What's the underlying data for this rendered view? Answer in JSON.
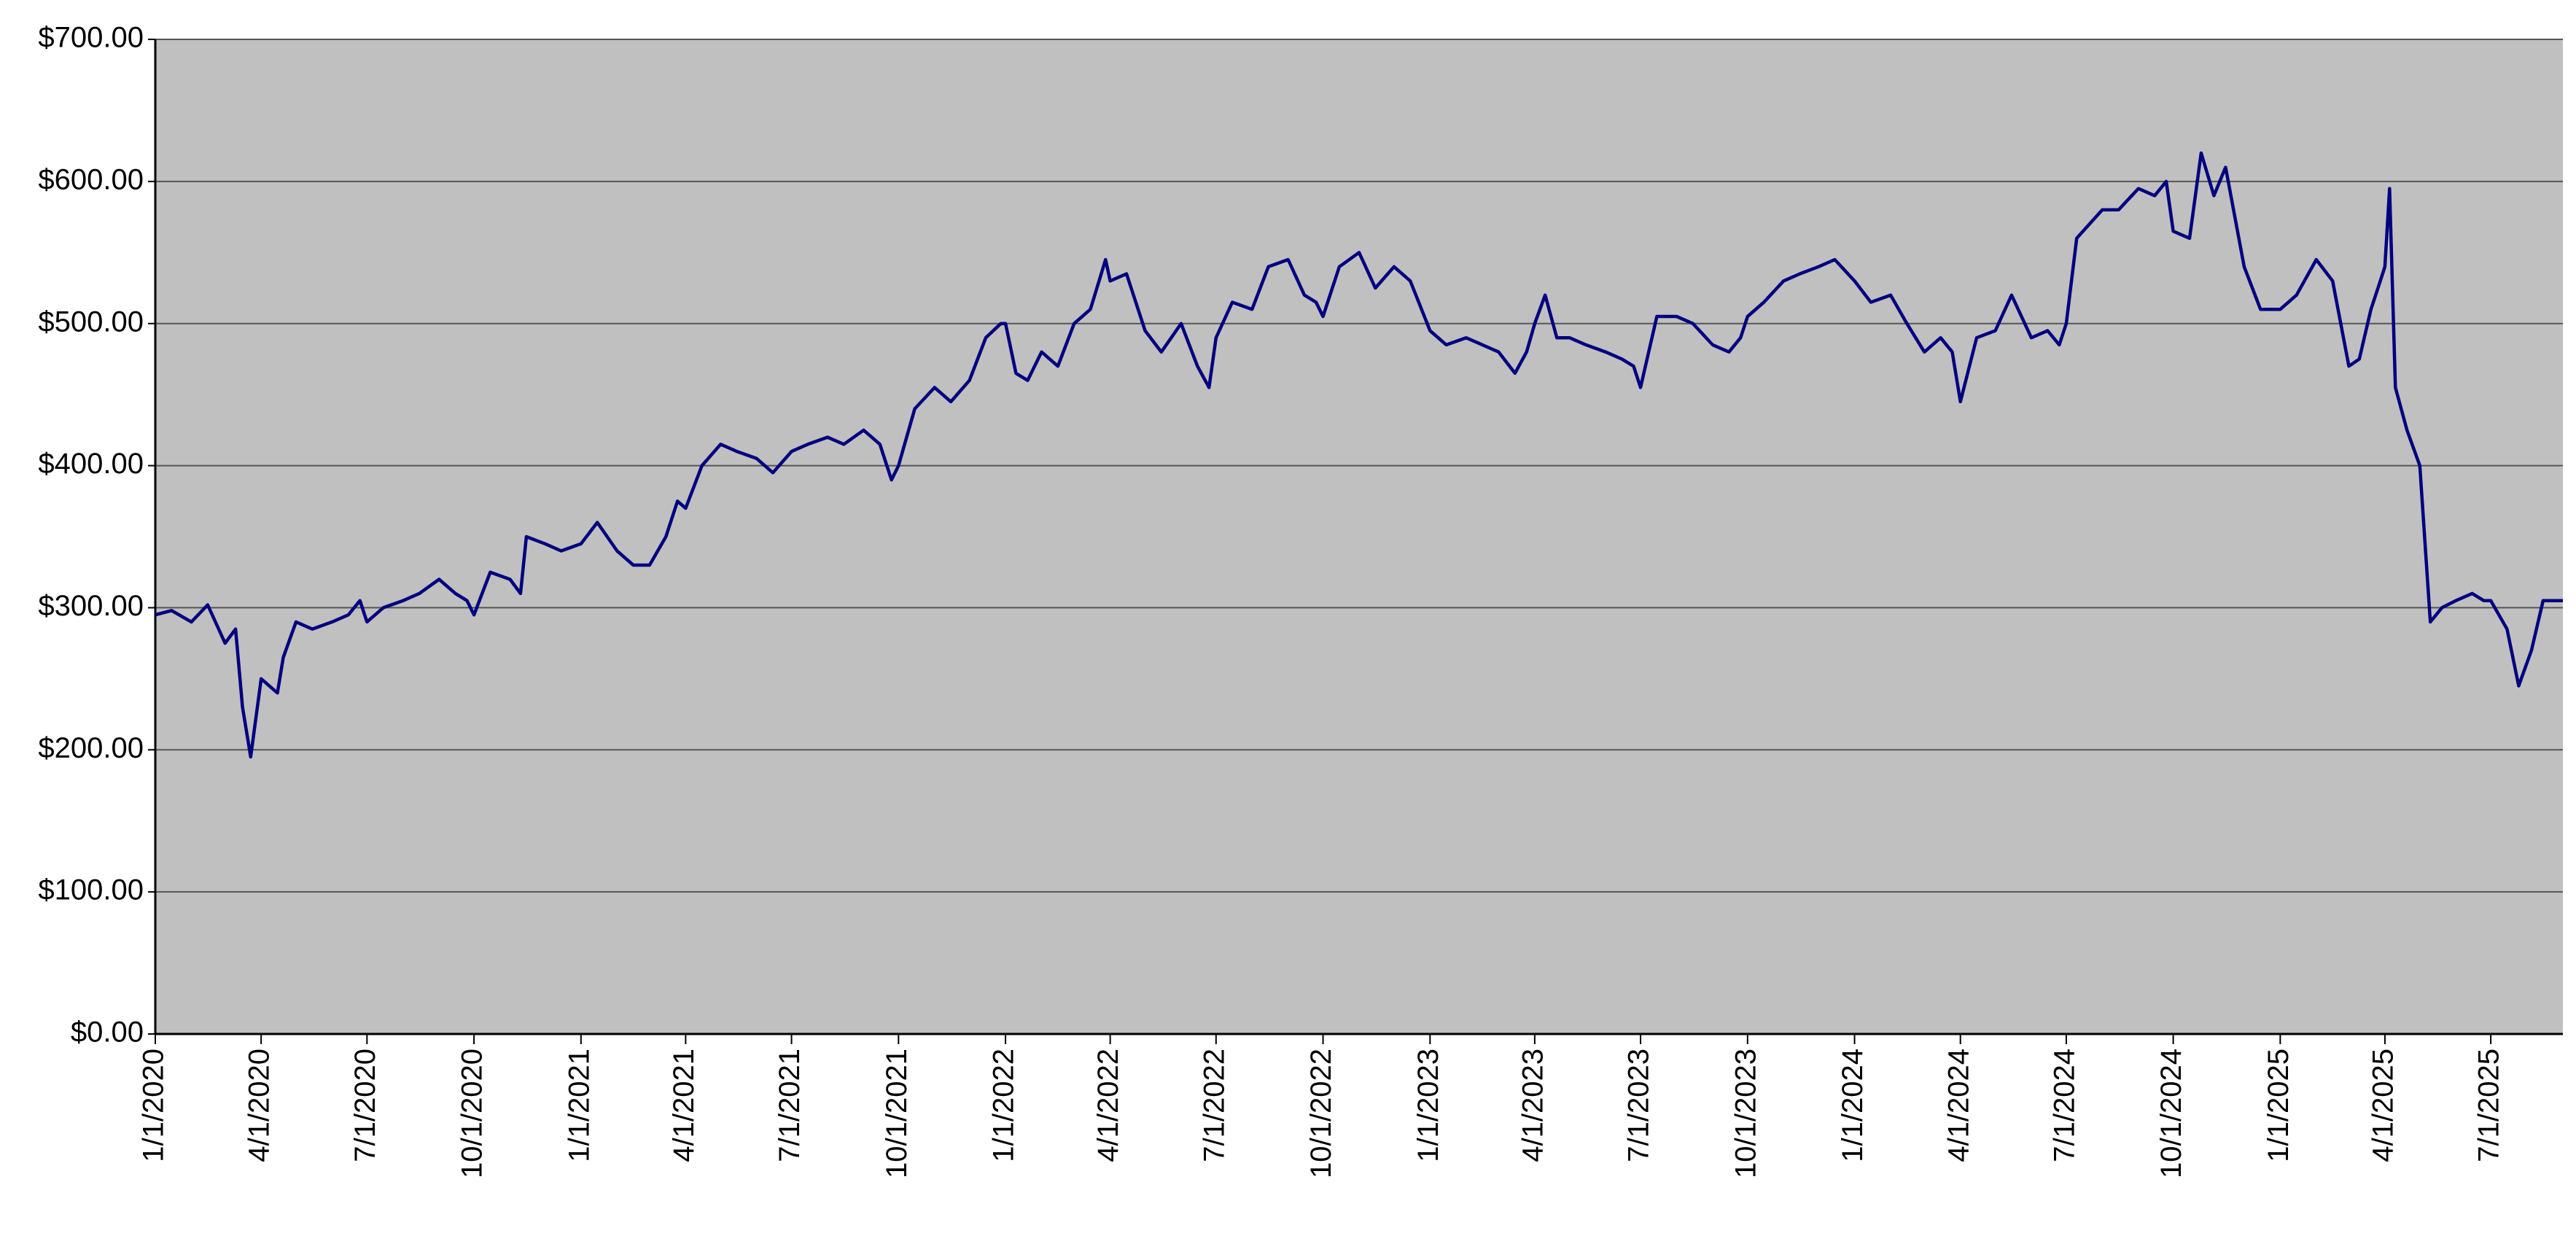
{
  "chart_data": {
    "type": "line",
    "x": [
      "1/1/2020",
      "1/15/2020",
      "2/1/2020",
      "2/15/2020",
      "3/1/2020",
      "3/10/2020",
      "3/16/2020",
      "3/23/2020",
      "4/1/2020",
      "4/15/2020",
      "4/20/2020",
      "5/1/2020",
      "5/15/2020",
      "6/1/2020",
      "6/15/2020",
      "6/25/2020",
      "7/1/2020",
      "7/15/2020",
      "8/1/2020",
      "8/15/2020",
      "9/1/2020",
      "9/15/2020",
      "9/25/2020",
      "10/1/2020",
      "10/15/2020",
      "11/1/2020",
      "11/10/2020",
      "11/15/2020",
      "12/1/2020",
      "12/15/2020",
      "1/1/2021",
      "1/15/2021",
      "2/1/2021",
      "2/15/2021",
      "3/1/2021",
      "3/15/2021",
      "3/25/2021",
      "4/1/2021",
      "4/15/2021",
      "5/1/2021",
      "5/15/2021",
      "6/1/2021",
      "6/15/2021",
      "7/1/2021",
      "7/15/2021",
      "8/1/2021",
      "8/15/2021",
      "9/1/2021",
      "9/15/2021",
      "9/25/2021",
      "10/1/2021",
      "10/15/2021",
      "11/1/2021",
      "11/15/2021",
      "12/1/2021",
      "12/15/2021",
      "12/28/2021",
      "1/1/2022",
      "1/10/2022",
      "1/20/2022",
      "2/1/2022",
      "2/15/2022",
      "3/1/2022",
      "3/15/2022",
      "3/28/2022",
      "4/1/2022",
      "4/15/2022",
      "5/1/2022",
      "5/15/2022",
      "6/1/2022",
      "6/15/2022",
      "6/25/2022",
      "7/1/2022",
      "7/15/2022",
      "8/1/2022",
      "8/15/2022",
      "9/1/2022",
      "9/15/2022",
      "9/25/2022",
      "10/1/2022",
      "10/15/2022",
      "11/1/2022",
      "11/15/2022",
      "12/1/2022",
      "12/15/2022",
      "1/1/2023",
      "1/15/2023",
      "2/1/2023",
      "2/15/2023",
      "3/1/2023",
      "3/15/2023",
      "3/25/2023",
      "4/1/2023",
      "4/10/2023",
      "4/20/2023",
      "5/1/2023",
      "5/15/2023",
      "6/1/2023",
      "6/15/2023",
      "6/25/2023",
      "7/1/2023",
      "7/15/2023",
      "8/1/2023",
      "8/15/2023",
      "9/1/2023",
      "9/15/2023",
      "9/25/2023",
      "10/1/2023",
      "10/15/2023",
      "11/1/2023",
      "11/15/2023",
      "12/1/2023",
      "12/15/2023",
      "1/1/2024",
      "1/15/2024",
      "2/1/2024",
      "2/15/2024",
      "3/1/2024",
      "3/15/2024",
      "3/25/2024",
      "4/1/2024",
      "4/15/2024",
      "5/1/2024",
      "5/15/2024",
      "6/1/2024",
      "6/15/2024",
      "6/25/2024",
      "7/1/2024",
      "7/10/2024",
      "8/1/2024",
      "8/15/2024",
      "9/1/2024",
      "9/15/2024",
      "9/25/2024",
      "10/1/2024",
      "10/15/2024",
      "10/25/2024",
      "11/5/2024",
      "11/15/2024",
      "12/1/2024",
      "12/15/2024",
      "1/1/2025",
      "1/15/2025",
      "2/1/2025",
      "2/15/2025",
      "3/1/2025",
      "3/10/2025",
      "3/20/2025",
      "3/28/2025",
      "4/1/2025",
      "4/5/2025",
      "4/10/2025",
      "4/20/2025",
      "5/1/2025",
      "5/10/2025",
      "5/20/2025",
      "6/1/2025",
      "6/15/2025",
      "6/25/2025",
      "7/1/2025",
      "7/15/2025",
      "7/25/2025",
      "8/5/2025",
      "8/15/2025",
      "9/1/2025"
    ],
    "series": [
      {
        "color": "#000080",
        "values": [
          295,
          298,
          290,
          302,
          275,
          285,
          230,
          195,
          250,
          240,
          265,
          290,
          285,
          290,
          295,
          305,
          290,
          300,
          305,
          310,
          320,
          310,
          305,
          295,
          325,
          320,
          310,
          350,
          345,
          340,
          345,
          360,
          340,
          330,
          330,
          350,
          375,
          370,
          400,
          415,
          410,
          405,
          395,
          410,
          415,
          420,
          415,
          425,
          415,
          390,
          400,
          440,
          455,
          445,
          460,
          490,
          500,
          500,
          465,
          460,
          480,
          470,
          500,
          510,
          545,
          530,
          535,
          495,
          480,
          500,
          470,
          455,
          490,
          515,
          510,
          540,
          545,
          520,
          515,
          505,
          540,
          550,
          525,
          540,
          530,
          495,
          485,
          490,
          485,
          480,
          465,
          480,
          500,
          520,
          490,
          490,
          485,
          480,
          475,
          470,
          455,
          505,
          505,
          500,
          485,
          480,
          490,
          505,
          515,
          530,
          535,
          540,
          545,
          530,
          515,
          520,
          500,
          480,
          490,
          480,
          445,
          490,
          495,
          520,
          490,
          495,
          485,
          500,
          560,
          580,
          580,
          595,
          590,
          600,
          565,
          560,
          620,
          590,
          610,
          540,
          510,
          510,
          520,
          545,
          530,
          470,
          475,
          510,
          530,
          540,
          595,
          455,
          425,
          400,
          290,
          300,
          305,
          310,
          305,
          305,
          285,
          245,
          270,
          305,
          305
        ]
      }
    ],
    "xlim": [
      "1/1/2020",
      "9/1/2025"
    ],
    "xticks": [
      "1/1/2020",
      "4/1/2020",
      "7/1/2020",
      "10/1/2020",
      "1/1/2021",
      "4/1/2021",
      "7/1/2021",
      "10/1/2021",
      "1/1/2022",
      "4/1/2022",
      "7/1/2022",
      "10/1/2022",
      "1/1/2023",
      "4/1/2023",
      "7/1/2023",
      "10/1/2023",
      "1/1/2024",
      "4/1/2024",
      "7/1/2024",
      "10/1/2024",
      "1/1/2025",
      "4/1/2025",
      "7/1/2025"
    ],
    "ylim": [
      0,
      700
    ],
    "yticks": [
      {
        "value": 0,
        "label": "$0.00"
      },
      {
        "value": 100,
        "label": "$100.00"
      },
      {
        "value": 200,
        "label": "$200.00"
      },
      {
        "value": 300,
        "label": "$300.00"
      },
      {
        "value": 400,
        "label": "$400.00"
      },
      {
        "value": 500,
        "label": "$500.00"
      },
      {
        "value": 600,
        "label": "$600.00"
      },
      {
        "value": 700,
        "label": "$700.00"
      }
    ],
    "grid": true,
    "background": "#c0c0c0"
  }
}
